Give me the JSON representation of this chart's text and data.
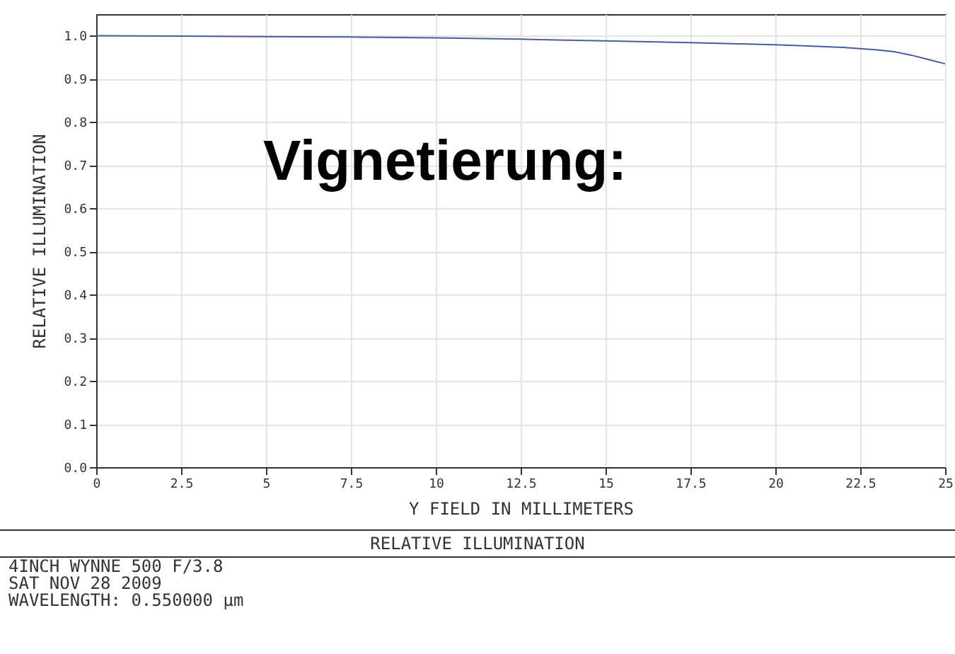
{
  "chart_data": {
    "type": "line",
    "title": "RELATIVE ILLUMINATION",
    "xlabel": "Y FIELD IN MILLIMETERS",
    "ylabel": "RELATIVE ILLUMINATION",
    "annotations": [
      "Vignetierung:",
      "4INCH WYNNE 500 F/3.8",
      "SAT NOV 28 2009",
      "WAVELENGTH: 0.550000 µm"
    ],
    "x": [
      0,
      2.5,
      5,
      7.5,
      10,
      12.5,
      15,
      17.5,
      20,
      21,
      22,
      22.5,
      23,
      23.5,
      24,
      24.5,
      25
    ],
    "series": [
      {
        "color": "#4a5aa8",
        "values": [
          1.0,
          0.999,
          0.998,
          0.997,
          0.995,
          0.992,
          0.988,
          0.984,
          0.979,
          0.976,
          0.973,
          0.97,
          0.967,
          0.963,
          0.955,
          0.945,
          0.935
        ]
      }
    ],
    "xlim": [
      0,
      25
    ],
    "xticks": [
      0,
      2.5,
      5,
      7.5,
      10,
      12.5,
      15,
      17.5,
      20,
      22.5,
      25
    ],
    "ylim": [
      0,
      1.05
    ],
    "yticks": [
      {
        "value": 0,
        "label": "0.0"
      },
      0.1,
      0.2,
      0.3,
      0.4,
      0.5,
      0.6,
      0.7,
      0.8,
      0.9,
      {
        "value": 1,
        "label": "1.0"
      }
    ],
    "grid": true,
    "marker": "none",
    "line_style": "solid"
  }
}
